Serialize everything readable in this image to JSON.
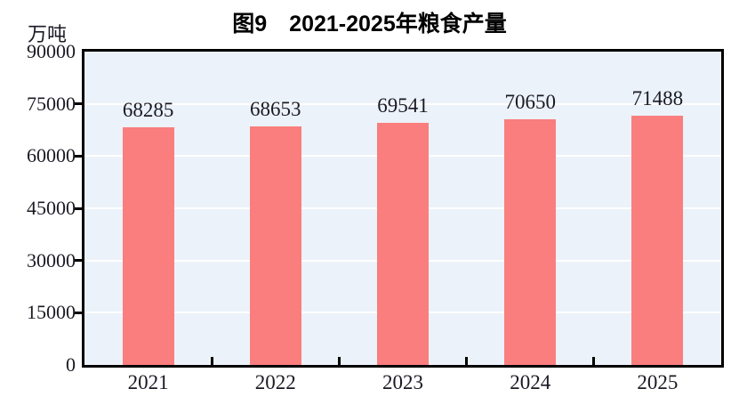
{
  "header": {
    "title": "图9　2021-2025年粮食产量",
    "unit_label": "万吨"
  },
  "chart_data": {
    "type": "bar",
    "title": "图9　2021-2025年粮食产量",
    "ylabel_unit": "万吨",
    "categories": [
      "2021",
      "2022",
      "2023",
      "2024",
      "2025"
    ],
    "values": [
      68285,
      68653,
      69541,
      70650,
      71488
    ],
    "data_labels": [
      "68285",
      "68653",
      "69541",
      "70650",
      "71488"
    ],
    "ylim": [
      0,
      90000
    ],
    "yticks": [
      0,
      15000,
      30000,
      45000,
      60000,
      75000,
      90000
    ],
    "grid": true,
    "legend": "none",
    "colors": {
      "bar": "#fa7e7e",
      "plot_background": "#ecf2f9",
      "gridline": "#ffffff",
      "axis": "#000000",
      "text": "#1a1a24",
      "title_text": "#000000",
      "page_background": "#ffffff"
    }
  }
}
